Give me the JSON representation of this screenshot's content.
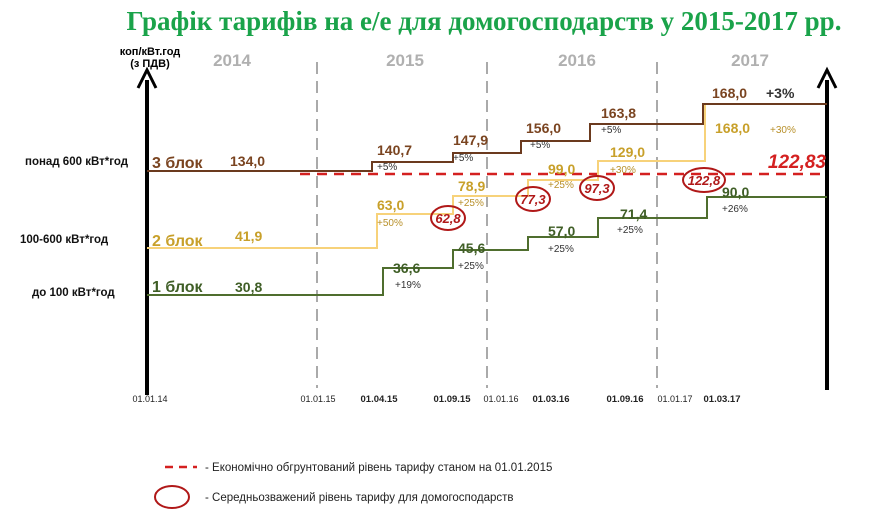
{
  "chart_data": {
    "type": "line",
    "title": "Графік тарифів на е/е для домогосподарств у 2015-2017 рр.",
    "ylabel": "коп/кВт.год (з ПДВ)",
    "years": [
      "2014",
      "2015",
      "2016",
      "2017"
    ],
    "x_dates": [
      "01.01.14",
      "01.01.15",
      "01.04.15",
      "01.09.15",
      "01.01.16",
      "01.03.16",
      "01.09.16",
      "01.01.17",
      "01.03.17"
    ],
    "step_dates": [
      "01.01.14",
      "01.04.15",
      "01.09.15",
      "01.03.16",
      "01.09.16",
      "01.03.17"
    ],
    "series": [
      {
        "name": "3 блок",
        "category": "понад 600 кВт*год",
        "color": "#6b3a1e",
        "label_color": "#7a4420",
        "values": [
          "134,0",
          "140,7",
          "147,9",
          "156,0",
          "163,8",
          "168,0"
        ],
        "changes": [
          "",
          "+5%",
          "+5%",
          "+5%",
          "+5%",
          "+3%"
        ]
      },
      {
        "name": "2 блок",
        "category": "100-600 кВт*год",
        "color": "#f7d27a",
        "label_color": "#c8a02a",
        "values": [
          "41,9",
          "63,0",
          "78,9",
          "99,0",
          "129,0",
          "168,0"
        ],
        "changes": [
          "",
          "+50%",
          "+25%",
          "+25%",
          "+30%",
          "+30%"
        ]
      },
      {
        "name": "1 блок",
        "category": "до 100 кВт*год",
        "color": "#4f6e2e",
        "label_color": "#3f5e26",
        "values": [
          "30,8",
          "36,6",
          "45,6",
          "57,0",
          "71,4",
          "90,0"
        ],
        "changes": [
          "",
          "+19%",
          "+25%",
          "+25%",
          "+25%",
          "+26%"
        ]
      }
    ],
    "weighted_average": [
      "62,8",
      "77,3",
      "97,3",
      "122,8"
    ],
    "economic_level": "122,83",
    "economic_color": "#d42020",
    "legend": [
      {
        "marker": "dashed-red-line",
        "text": "- Економічно обгрунтований  рівень тарифу станом на 01.01.2015"
      },
      {
        "marker": "red-ellipse",
        "text": "- Середньозважений рівень тарифу для домогосподарств"
      }
    ]
  }
}
